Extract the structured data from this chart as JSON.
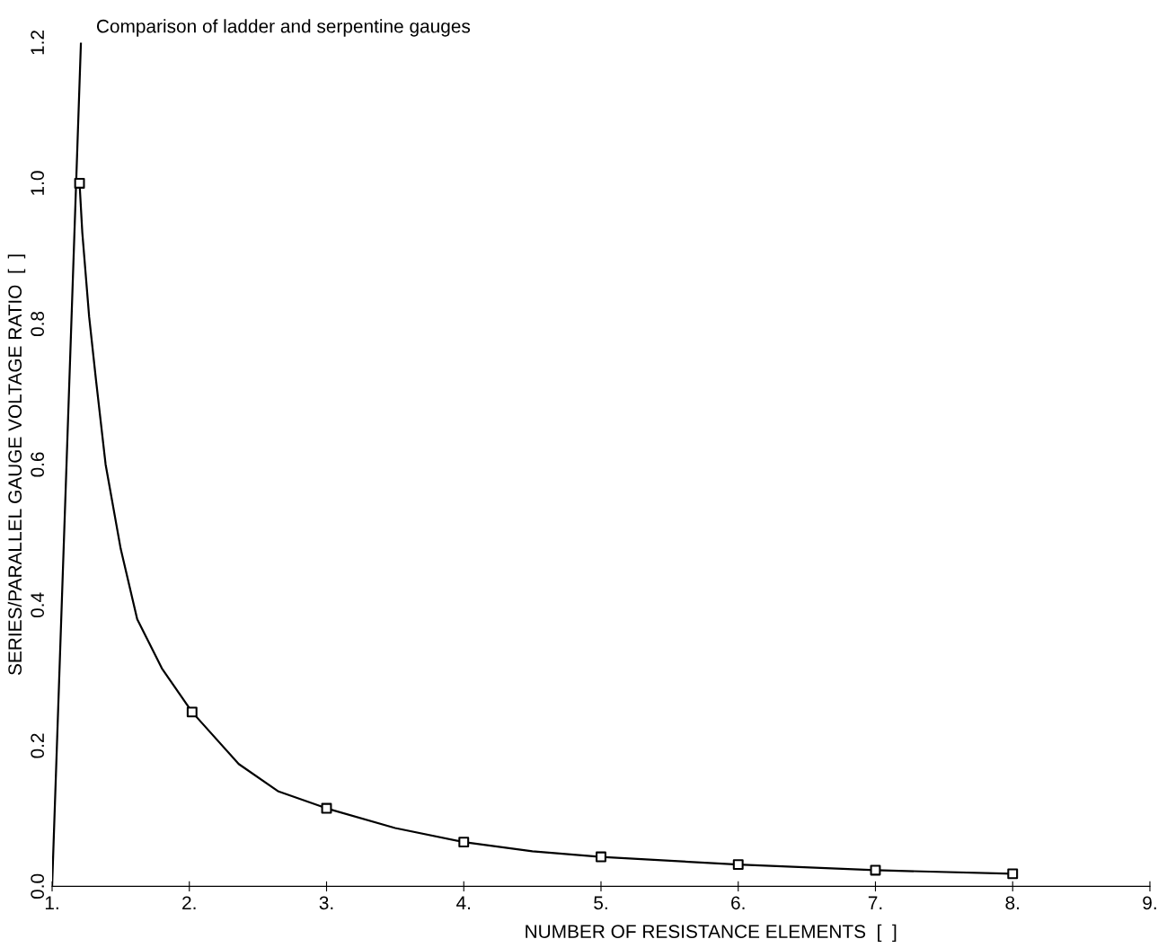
{
  "chart_data": {
    "type": "line",
    "title": "Comparison of ladder and serpentine gauges",
    "xlabel": "NUMBER OF RESISTANCE ELEMENTS  [  ]",
    "ylabel": "SERIES/PARALLEL GAUGE VOLTAGE RATIO  [  ]",
    "series": [
      {
        "color": "#000000",
        "marker": "none",
        "x": [
          1.0,
          1.21
        ],
        "values": [
          0.0,
          1.2
        ]
      },
      {
        "color": "#000000",
        "marker": "none",
        "x": [
          1.2,
          1.22,
          1.27,
          1.32,
          1.39,
          1.5,
          1.62,
          1.8,
          2.02,
          2.36,
          2.65,
          3.0,
          3.5,
          4.0,
          4.5,
          5.0,
          6.0,
          7.0,
          8.0
        ],
        "values": [
          1.0,
          0.93,
          0.81,
          0.72,
          0.6,
          0.48,
          0.38,
          0.31,
          0.248,
          0.174,
          0.135,
          0.111,
          0.083,
          0.063,
          0.05,
          0.042,
          0.031,
          0.023,
          0.018
        ]
      },
      {
        "type": "scatter",
        "color": "#000000",
        "marker": "square",
        "x": [
          1.2,
          2.02,
          3.0,
          4.0,
          5.0,
          6.0,
          7.0,
          8.0
        ],
        "values": [
          1.0,
          0.248,
          0.111,
          0.063,
          0.042,
          0.031,
          0.023,
          0.018
        ]
      }
    ],
    "xlim": [
      1,
      9
    ],
    "xticks": [
      {
        "value": 1,
        "label": "1."
      },
      {
        "value": 2,
        "label": "2."
      },
      {
        "value": 3,
        "label": "3."
      },
      {
        "value": 4,
        "label": "4."
      },
      {
        "value": 5,
        "label": "5."
      },
      {
        "value": 6,
        "label": "6."
      },
      {
        "value": 7,
        "label": "7."
      },
      {
        "value": 8,
        "label": "8."
      },
      {
        "value": 9,
        "label": "9."
      }
    ],
    "ylim": [
      0,
      1.2
    ],
    "yticks": [
      {
        "value": 0,
        "label": "0.0"
      },
      0.2,
      0.4,
      0.6,
      0.8,
      {
        "value": 1,
        "label": "1.0"
      },
      1.2
    ],
    "grid": false,
    "legend": false
  }
}
